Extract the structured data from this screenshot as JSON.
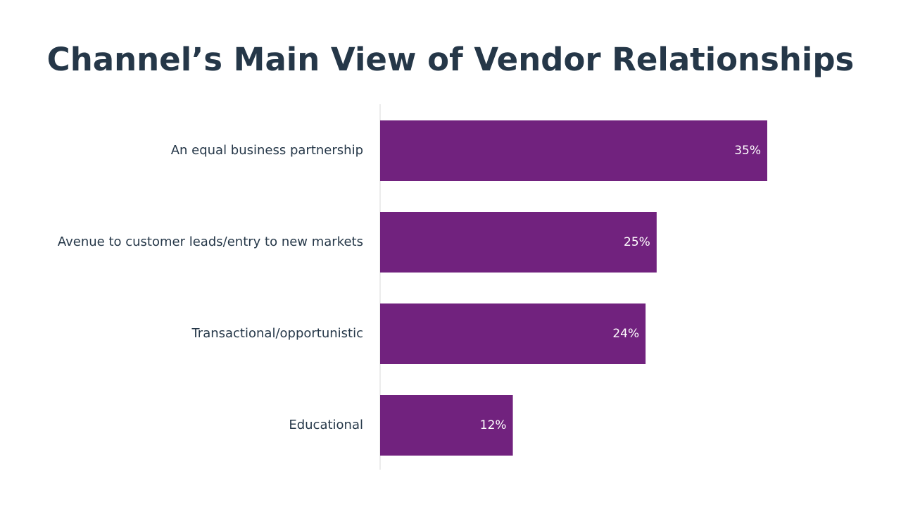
{
  "slide": {
    "title": "Channel’s Main View of Vendor Relationships"
  },
  "chart_data": {
    "type": "bar",
    "orientation": "horizontal",
    "categories": [
      "An equal business partnership",
      "Avenue to customer leads/entry to new markets",
      "Transactional/opportunistic",
      "Educational"
    ],
    "values": [
      35,
      25,
      24,
      12
    ],
    "value_labels": [
      "35%",
      "25%",
      "24%",
      "12%"
    ],
    "unit": "%",
    "xlim": [
      0,
      45
    ],
    "grid": false,
    "legend": "none",
    "bar_color": "#71227E",
    "axis_color": "#D9D9D9"
  }
}
